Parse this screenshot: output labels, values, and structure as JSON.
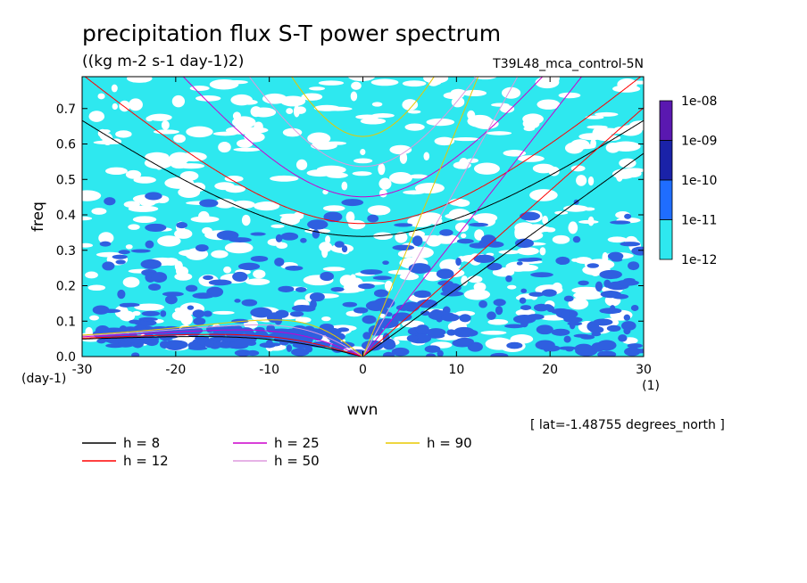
{
  "chart_data": {
    "type": "heatmap",
    "title": "precipitation flux S-T power spectrum",
    "subtitle": "((kg m-2 s-1 day-1)2)",
    "experiment": "T39L48_mca_control-5N",
    "xlabel": "wvn",
    "ylabel": "freq",
    "x_unit": "(1)",
    "y_unit": "(day-1)",
    "xlim": [
      -30,
      30
    ],
    "ylim": [
      0,
      0.79
    ],
    "xticks": [
      -30,
      -20,
      -10,
      0,
      10,
      20,
      30
    ],
    "yticks": [
      0.0,
      0.1,
      0.2,
      0.3,
      0.4,
      0.5,
      0.6,
      0.7
    ],
    "xtick_labels": [
      "-30",
      "-20",
      "-10",
      "0",
      "10",
      "20",
      "30"
    ],
    "ytick_labels": [
      "0.0",
      "0.1",
      "0.2",
      "0.3",
      "0.4",
      "0.5",
      "0.6",
      "0.7"
    ],
    "colorbar": {
      "levels": [
        "1e-08",
        "1e-09",
        "1e-10",
        "1e-11",
        "1e-12"
      ],
      "colors": [
        "#5a18b0",
        "#1a22a8",
        "#1f6dff",
        "#2ee8ef"
      ]
    },
    "contour_fill": {
      "background_level_color": "#2ee8ef",
      "high_level_color": "#2f5fe0",
      "gap_color": "#ffffff"
    },
    "dispersion_curves": [
      {
        "h": 8,
        "label": "h =  8",
        "color": "#000000"
      },
      {
        "h": 12,
        "label": "h = 12",
        "color": "#ff0000"
      },
      {
        "h": 25,
        "label": "h = 25",
        "color": "#cc00cc"
      },
      {
        "h": 50,
        "label": "h = 50",
        "color": "#dd99dd"
      },
      {
        "h": 90,
        "label": "h = 90",
        "color": "#e8c800"
      }
    ],
    "annotation": "[ lat=-1.48755 degrees_north ]"
  }
}
